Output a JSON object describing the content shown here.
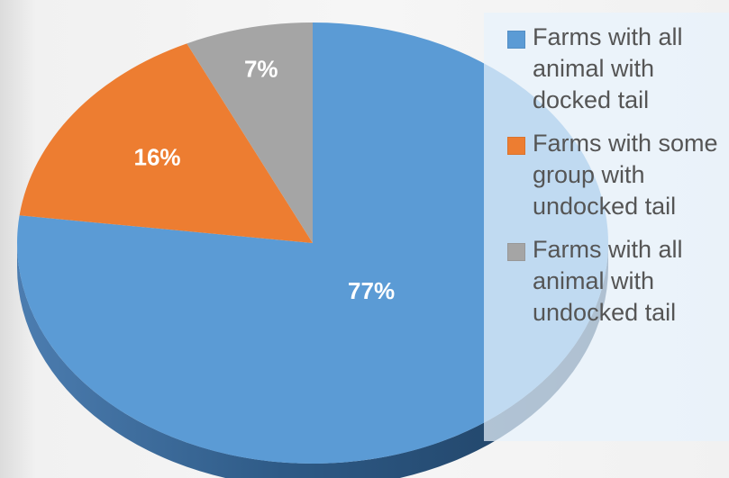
{
  "chart_data": {
    "type": "pie",
    "title": "",
    "slices": [
      {
        "label": "Farms with all animal with docked tail",
        "value": 77,
        "display": "77%",
        "color": "#5b9bd5"
      },
      {
        "label": "Farms with some group with undocked tail",
        "value": 16,
        "display": "16%",
        "color": "#ed7d31"
      },
      {
        "label": "Farms with all animal with undocked tail",
        "value": 7,
        "display": "7%",
        "color": "#a5a5a5"
      }
    ],
    "legend_position": "right",
    "style": "3d"
  }
}
